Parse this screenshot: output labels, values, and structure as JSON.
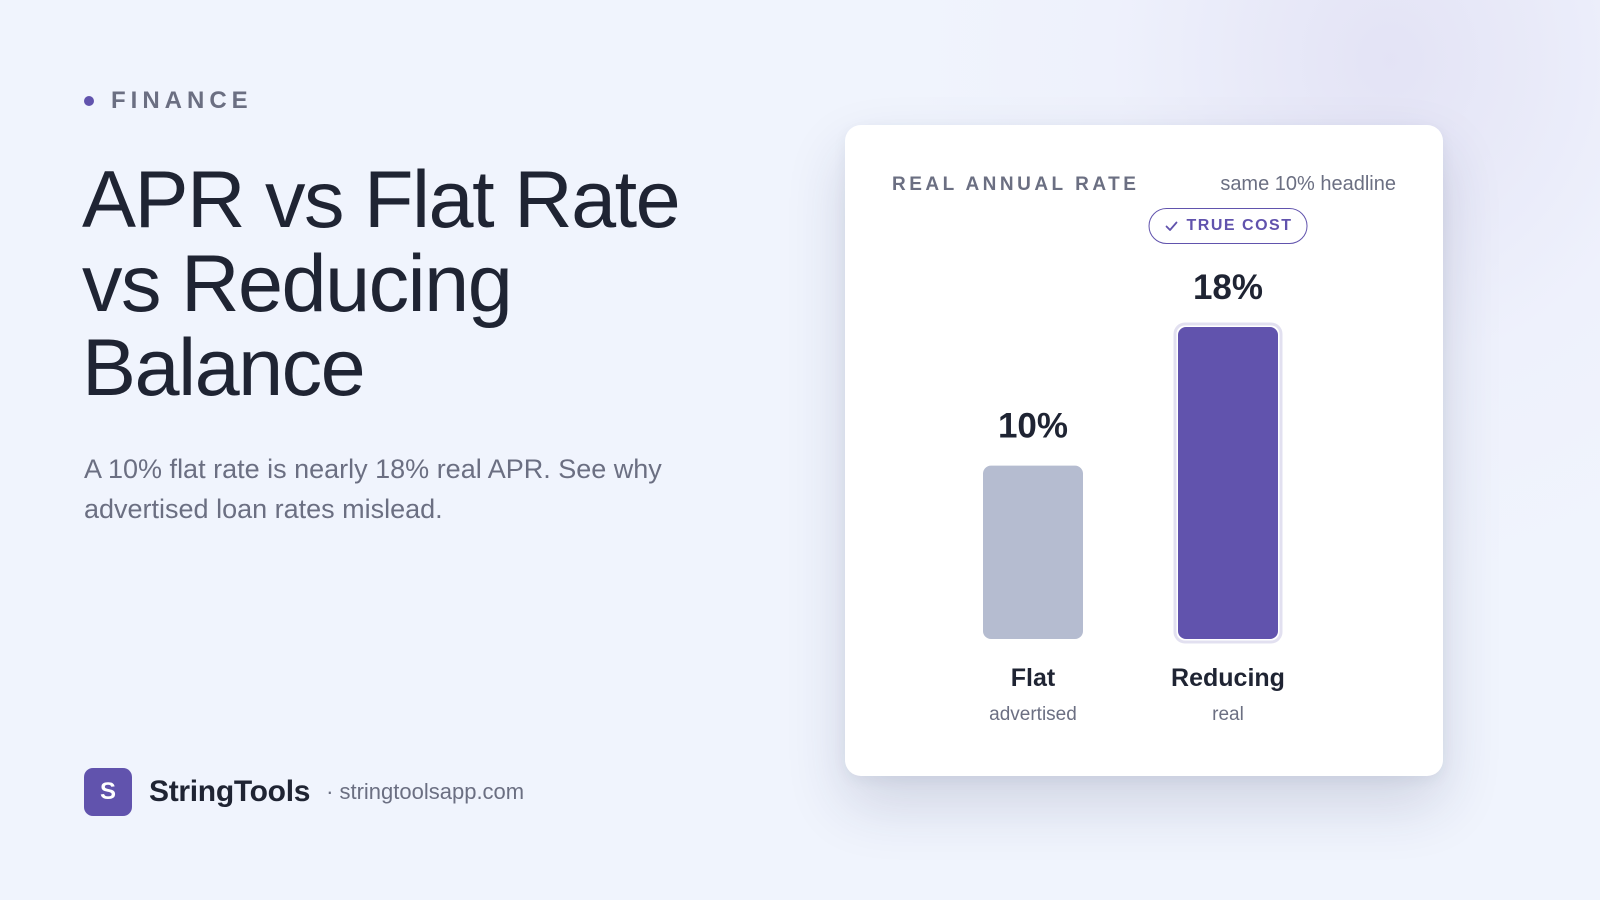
{
  "category": "FINANCE",
  "title": "APR vs Flat Rate vs Reducing Balance",
  "subtitle": "A 10% flat rate is nearly 18% real APR. See why advertised loan rates mislead.",
  "brand": {
    "logo_letter": "S",
    "name": "StringTools",
    "separator": "·",
    "url": "stringtoolsapp.com"
  },
  "card": {
    "title": "REAL ANNUAL RATE",
    "note": "same 10% headline",
    "badge": "TRUE COST"
  },
  "colors": {
    "accent": "#6153ad",
    "muted_bar": "#b5bcd0",
    "text_dark": "#1f2433",
    "text_muted": "#6b6f82",
    "background": "#f0f4fd"
  },
  "chart_data": {
    "type": "bar",
    "title": "REAL ANNUAL RATE",
    "categories": [
      "Flat",
      "Reducing"
    ],
    "sublabels": [
      "advertised",
      "real"
    ],
    "values": [
      10,
      18
    ],
    "value_labels": [
      "10%",
      "18%"
    ],
    "highlight_index": 1,
    "ylim": [
      0,
      18
    ],
    "grid": false,
    "legend": "none"
  }
}
